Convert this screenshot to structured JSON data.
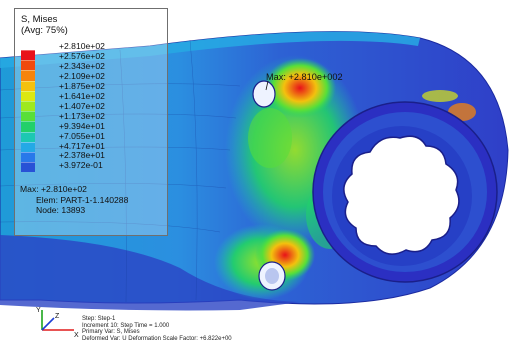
{
  "legend": {
    "title": "S, Mises",
    "subtitle": "(Avg: 75%)",
    "ticks": [
      "+2.810e+02",
      "+2.576e+02",
      "+2.343e+02",
      "+2.109e+02",
      "+1.875e+02",
      "+1.641e+02",
      "+1.407e+02",
      "+1.173e+02",
      "+9.394e+01",
      "+7.055e+01",
      "+4.717e+01",
      "+2.378e+01",
      "+3.972e-01"
    ],
    "band_colors": [
      "#e8111a",
      "#f04a0e",
      "#f5840c",
      "#f3c10e",
      "#dce813",
      "#9ee91f",
      "#58df38",
      "#22d06a",
      "#1cc8b2",
      "#24a9e6",
      "#2879ea",
      "#2852d6",
      "#2b2fc2"
    ],
    "max_label": "Max: +2.810e+02",
    "elem_label": "Elem: PART-1-1.140288",
    "node_label": "Node: 13893"
  },
  "callout": {
    "max_label": "Max: +2.810e+002"
  },
  "triad": {
    "x_label": "X",
    "y_label": "Y",
    "z_label": "Z"
  },
  "step_info": {
    "line1": "Step: Step-1",
    "line2": "Increment     10: Step Time =     1.000",
    "line3": "Primary Var: S, Mises",
    "line4": "Deformed Var: U   Deformation Scale Factor: +6.822e+00"
  },
  "colors": {
    "hot": "#e8111a",
    "mid": "#22d06a",
    "cold": "#2b2fc2",
    "background": "#ffffff"
  }
}
